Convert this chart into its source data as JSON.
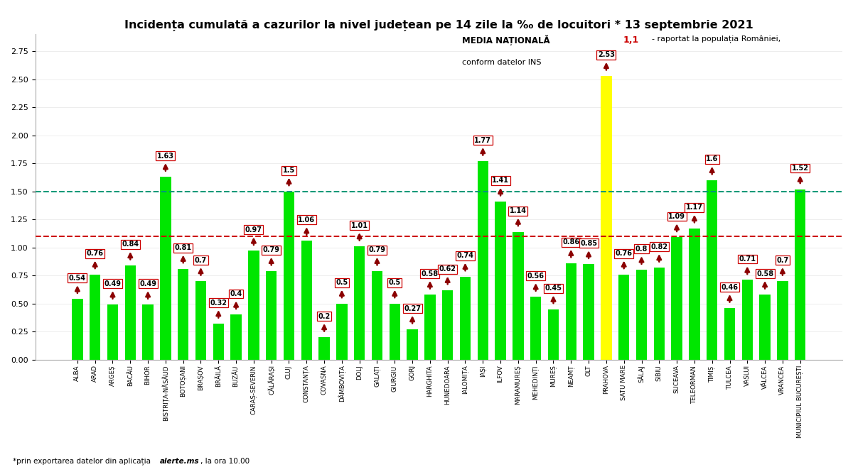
{
  "title": "Incidența cumulată a cazurilor la nivel județean pe 14 zile la ‰ de locuitori * 13 septembrie 2021",
  "footnote_prefix": "*prin exportarea datelor din aplicația ",
  "footnote_bold": "alerte.ms",
  "footnote_suffix": ", la ora 10.00",
  "legend_bold": "MEDIA NAȚIONALĂ ",
  "legend_red": "1,1",
  "legend_normal": " - raportat la populația României,\nconform datelor INS",
  "red_line": 1.1,
  "green_line": 1.5,
  "categories": [
    "ALBA",
    "ARAD",
    "ARGEȘ",
    "BACĂU",
    "BIHOR",
    "BISTRIȚA-NĂSĂUD",
    "BOTOȘANI",
    "BRAȘOV",
    "BRĂILĂ",
    "BUZĂU",
    "CARAȘ-SEVERIN",
    "CĂLĂRAȘI",
    "CLUJ",
    "CONSTANȚA",
    "COVASNA",
    "DÂMBOVIȚA",
    "DOLJ",
    "GALAȚI",
    "GIURGIU",
    "GORJ",
    "HARGHITA",
    "HUNEDOARA",
    "IALOMIȚA",
    "IAȘI",
    "ILFOV",
    "MARAMUREȘ",
    "MEHEDINȚI",
    "MUREȘ",
    "NEAMȚ",
    "OLT",
    "PRAHOVA",
    "SATU MARE",
    "SĂLAJ",
    "SIBIU",
    "SUCEAVA",
    "TELEORMAN",
    "TIMIȘ",
    "TULCEA",
    "VASLUI",
    "VÂLCEA",
    "VRANCEA",
    "MUNICIPIUL BUCUREȘTI"
  ],
  "values": [
    0.54,
    0.76,
    0.49,
    0.84,
    0.49,
    1.63,
    0.81,
    0.7,
    0.32,
    0.4,
    0.97,
    0.79,
    1.5,
    1.06,
    0.2,
    0.5,
    1.01,
    0.79,
    0.5,
    0.27,
    0.58,
    0.62,
    0.74,
    1.77,
    1.41,
    1.14,
    0.56,
    0.45,
    0.86,
    0.85,
    2.53,
    0.76,
    0.8,
    0.82,
    1.09,
    1.17,
    1.6,
    0.46,
    0.71,
    0.58,
    0.7,
    1.52
  ],
  "bar_colors": [
    "#00e600",
    "#00e600",
    "#00e600",
    "#00e600",
    "#00e600",
    "#00e600",
    "#00e600",
    "#00e600",
    "#00e600",
    "#00e600",
    "#00e600",
    "#00e600",
    "#00e600",
    "#00e600",
    "#00e600",
    "#00e600",
    "#00e600",
    "#00e600",
    "#00e600",
    "#00e600",
    "#00e600",
    "#00e600",
    "#00e600",
    "#00e600",
    "#00e600",
    "#00e600",
    "#00e600",
    "#00e600",
    "#00e600",
    "#00e600",
    "#ffff00",
    "#00e600",
    "#00e600",
    "#00e600",
    "#00e600",
    "#00e600",
    "#00e600",
    "#00e600",
    "#00e600",
    "#00e600",
    "#00e600",
    "#00e600"
  ],
  "ylim": [
    0.0,
    2.9
  ],
  "ytick_values": [
    0.0,
    0.25,
    0.5,
    0.75,
    1.0,
    1.25,
    1.5,
    1.75,
    2.0,
    2.25,
    2.5,
    2.75
  ],
  "background_color": "#ffffff",
  "title_fontsize": 11.5,
  "bar_label_fontsize": 7.0,
  "xtick_fontsize": 6.2,
  "ytick_fontsize": 8.0,
  "arrow_color": "#8b0000",
  "box_edge_color": "#cc0000",
  "red_line_color": "#cc0000",
  "green_line_color": "#009977",
  "bar_width": 0.62
}
